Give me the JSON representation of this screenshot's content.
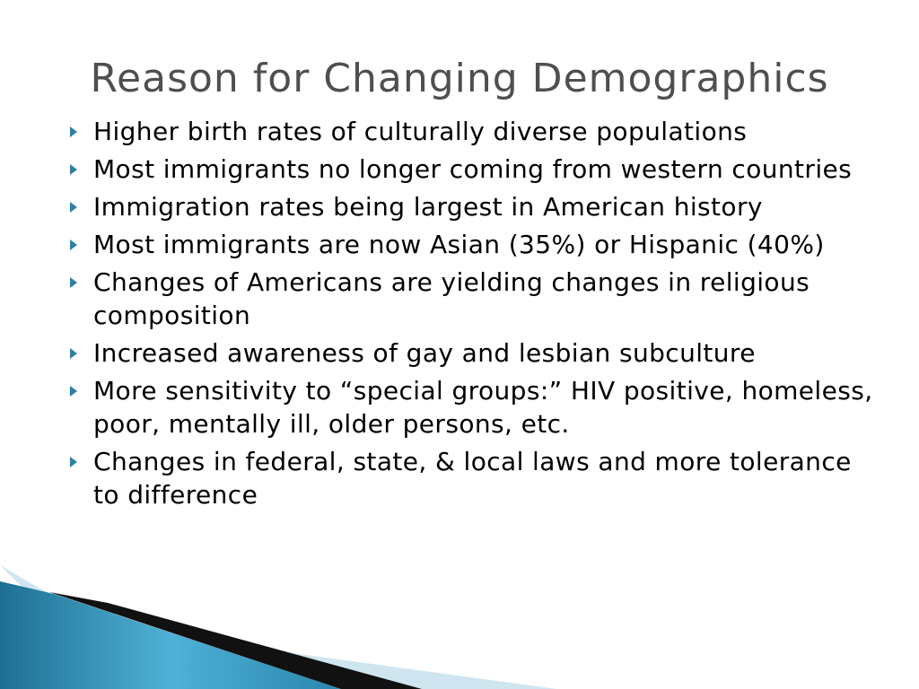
{
  "title": "Reason for Changing Demographics",
  "bullets": [
    "Higher birth rates of culturally diverse populations",
    "Most immigrants no longer coming from western countries",
    "Immigration rates being largest in American history",
    "Most immigrants are now Asian (35%) or Hispanic (40%)",
    "Changes of Americans are yielding changes in religious composition",
    "Increased awareness of gay and lesbian subculture",
    "More sensitivity to “special groups:” HIV positive, homeless, poor, mentally ill, older persons, etc.",
    "Changes in federal, state, & local laws and more tolerance to difference"
  ]
}
